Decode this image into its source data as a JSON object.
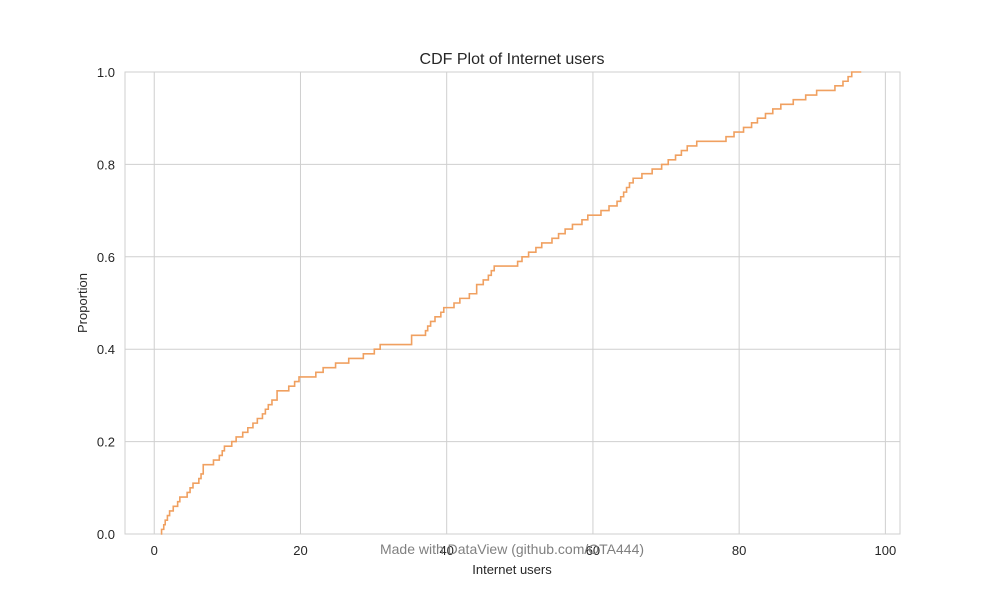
{
  "chart_data": {
    "type": "line",
    "title": "CDF Plot of Internet users",
    "xlabel": "Internet users",
    "ylabel": "Proportion",
    "xlim": [
      -4,
      102
    ],
    "ylim": [
      0,
      1
    ],
    "x_ticks": [
      "0",
      "20",
      "40",
      "60",
      "80",
      "100"
    ],
    "y_ticks": [
      "0.0",
      "0.2",
      "0.4",
      "0.6",
      "0.8",
      "1.0"
    ],
    "grid": true,
    "legend": "none",
    "series": [
      {
        "color": "#f0a060",
        "points": [
          [
            0.9,
            0.0
          ],
          [
            1.0,
            0.01
          ],
          [
            1.3,
            0.02
          ],
          [
            1.5,
            0.03
          ],
          [
            1.8,
            0.04
          ],
          [
            2.1,
            0.05
          ],
          [
            2.6,
            0.06
          ],
          [
            3.2,
            0.07
          ],
          [
            3.5,
            0.08
          ],
          [
            4.5,
            0.09
          ],
          [
            4.9,
            0.1
          ],
          [
            5.3,
            0.11
          ],
          [
            6.1,
            0.12
          ],
          [
            6.4,
            0.13
          ],
          [
            6.7,
            0.15
          ],
          [
            8.1,
            0.16
          ],
          [
            8.9,
            0.17
          ],
          [
            9.3,
            0.18
          ],
          [
            9.6,
            0.19
          ],
          [
            10.6,
            0.2
          ],
          [
            11.2,
            0.21
          ],
          [
            12.1,
            0.22
          ],
          [
            12.8,
            0.23
          ],
          [
            13.5,
            0.24
          ],
          [
            14.1,
            0.25
          ],
          [
            14.8,
            0.26
          ],
          [
            15.2,
            0.27
          ],
          [
            15.6,
            0.28
          ],
          [
            16.1,
            0.29
          ],
          [
            16.8,
            0.31
          ],
          [
            18.4,
            0.32
          ],
          [
            19.2,
            0.33
          ],
          [
            19.8,
            0.34
          ],
          [
            22.1,
            0.35
          ],
          [
            23.1,
            0.36
          ],
          [
            24.8,
            0.37
          ],
          [
            26.6,
            0.38
          ],
          [
            28.6,
            0.39
          ],
          [
            30.1,
            0.4
          ],
          [
            30.9,
            0.41
          ],
          [
            34.5,
            0.41
          ],
          [
            35.2,
            0.43
          ],
          [
            37.1,
            0.44
          ],
          [
            37.4,
            0.45
          ],
          [
            37.8,
            0.46
          ],
          [
            38.4,
            0.47
          ],
          [
            39.2,
            0.48
          ],
          [
            39.6,
            0.49
          ],
          [
            41.0,
            0.5
          ],
          [
            41.8,
            0.51
          ],
          [
            43.1,
            0.52
          ],
          [
            44.1,
            0.54
          ],
          [
            45.0,
            0.55
          ],
          [
            45.7,
            0.56
          ],
          [
            46.1,
            0.57
          ],
          [
            46.5,
            0.58
          ],
          [
            49.7,
            0.59
          ],
          [
            50.3,
            0.6
          ],
          [
            51.2,
            0.61
          ],
          [
            52.2,
            0.62
          ],
          [
            53.0,
            0.63
          ],
          [
            54.4,
            0.64
          ],
          [
            55.3,
            0.65
          ],
          [
            56.2,
            0.66
          ],
          [
            57.2,
            0.67
          ],
          [
            58.5,
            0.68
          ],
          [
            59.3,
            0.69
          ],
          [
            61.1,
            0.7
          ],
          [
            62.2,
            0.71
          ],
          [
            63.3,
            0.72
          ],
          [
            63.8,
            0.73
          ],
          [
            64.2,
            0.74
          ],
          [
            64.6,
            0.75
          ],
          [
            65.0,
            0.76
          ],
          [
            65.5,
            0.77
          ],
          [
            66.7,
            0.78
          ],
          [
            68.1,
            0.79
          ],
          [
            69.4,
            0.8
          ],
          [
            70.3,
            0.81
          ],
          [
            71.3,
            0.82
          ],
          [
            72.1,
            0.83
          ],
          [
            72.9,
            0.84
          ],
          [
            74.2,
            0.85
          ],
          [
            78.2,
            0.86
          ],
          [
            79.3,
            0.87
          ],
          [
            80.6,
            0.88
          ],
          [
            81.7,
            0.89
          ],
          [
            82.5,
            0.9
          ],
          [
            83.6,
            0.91
          ],
          [
            84.6,
            0.92
          ],
          [
            85.7,
            0.93
          ],
          [
            87.4,
            0.94
          ],
          [
            89.1,
            0.95
          ],
          [
            90.6,
            0.96
          ],
          [
            92.4,
            0.96
          ],
          [
            93.1,
            0.97
          ],
          [
            94.2,
            0.98
          ],
          [
            94.9,
            0.99
          ],
          [
            95.4,
            1.0
          ],
          [
            96.7,
            1.0
          ]
        ]
      }
    ],
    "watermark": "Made with DataView (github.com/OTA444)"
  }
}
